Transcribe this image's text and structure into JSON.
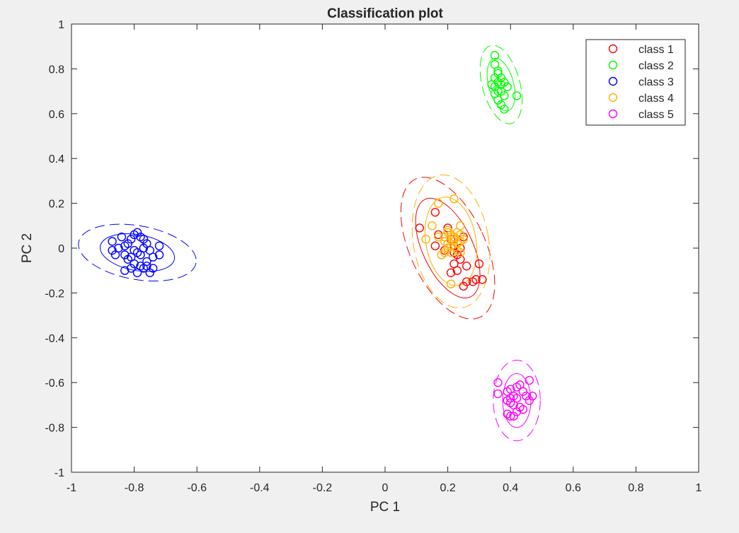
{
  "chart_data": {
    "type": "scatter",
    "title": "Classification plot",
    "xlabel": "PC 1",
    "ylabel": "PC 2",
    "xlim": [
      -1,
      1
    ],
    "ylim": [
      -1,
      1
    ],
    "x_ticks": [
      "-1",
      "-0.8",
      "-0.6",
      "-0.4",
      "-0.2",
      "0",
      "0.2",
      "0.4",
      "0.6",
      "0.8",
      "1"
    ],
    "y_ticks": [
      "1",
      "0.8",
      "0.6",
      "0.4",
      "0.2",
      "0",
      "-0.2",
      "-0.4",
      "-0.6",
      "-0.8",
      "-1"
    ],
    "grid": false,
    "legend_position": "top-right",
    "series": [
      {
        "name": "class 1",
        "color": "#ff0000",
        "marker": "circle",
        "points": [
          [
            0.11,
            0.09
          ],
          [
            0.16,
            0.16
          ],
          [
            0.17,
            0.06
          ],
          [
            0.16,
            0.01
          ],
          [
            0.19,
            -0.01
          ],
          [
            0.2,
            0.09
          ],
          [
            0.21,
            0.04
          ],
          [
            0.22,
            -0.02
          ],
          [
            0.23,
            -0.03
          ],
          [
            0.24,
            -0.05
          ],
          [
            0.25,
            0.05
          ],
          [
            0.26,
            -0.08
          ],
          [
            0.26,
            -0.15
          ],
          [
            0.25,
            -0.17
          ],
          [
            0.28,
            -0.15
          ],
          [
            0.29,
            -0.14
          ],
          [
            0.31,
            -0.14
          ],
          [
            0.3,
            -0.07
          ],
          [
            0.23,
            -0.1
          ],
          [
            0.21,
            -0.11
          ],
          [
            0.22,
            0.01
          ],
          [
            0.2,
            0.0
          ],
          [
            0.22,
            -0.07
          ],
          [
            0.24,
            0.0
          ]
        ],
        "ellipses": [
          {
            "center": [
              0.2,
              0.0
            ],
            "rx": 0.08,
            "ry": 0.24,
            "rotation_deg": -25,
            "style": "solid"
          },
          {
            "center": [
              0.2,
              0.0
            ],
            "rx": 0.12,
            "ry": 0.34,
            "rotation_deg": -25,
            "style": "dashed"
          }
        ]
      },
      {
        "name": "class 2",
        "color": "#00ff00",
        "marker": "circle",
        "points": [
          [
            0.35,
            0.86
          ],
          [
            0.35,
            0.82
          ],
          [
            0.36,
            0.79
          ],
          [
            0.35,
            0.76
          ],
          [
            0.36,
            0.74
          ],
          [
            0.37,
            0.73
          ],
          [
            0.38,
            0.74
          ],
          [
            0.35,
            0.72
          ],
          [
            0.36,
            0.7
          ],
          [
            0.34,
            0.73
          ],
          [
            0.37,
            0.7
          ],
          [
            0.38,
            0.68
          ],
          [
            0.36,
            0.66
          ],
          [
            0.37,
            0.64
          ],
          [
            0.38,
            0.62
          ],
          [
            0.42,
            0.68
          ],
          [
            0.35,
            0.69
          ],
          [
            0.37,
            0.76
          ],
          [
            0.39,
            0.72
          ],
          [
            0.36,
            0.78
          ]
        ],
        "ellipses": [
          {
            "center": [
              0.37,
              0.73
            ],
            "rx": 0.04,
            "ry": 0.12,
            "rotation_deg": -15,
            "style": "solid"
          },
          {
            "center": [
              0.37,
              0.73
            ],
            "rx": 0.06,
            "ry": 0.18,
            "rotation_deg": -15,
            "style": "dashed"
          }
        ]
      },
      {
        "name": "class 3",
        "color": "#0000ff",
        "marker": "circle",
        "points": [
          [
            -0.87,
            0.03
          ],
          [
            -0.87,
            -0.01
          ],
          [
            -0.86,
            -0.03
          ],
          [
            -0.85,
            0.0
          ],
          [
            -0.84,
            0.05
          ],
          [
            -0.83,
            0.01
          ],
          [
            -0.83,
            -0.03
          ],
          [
            -0.82,
            0.02
          ],
          [
            -0.81,
            0.04
          ],
          [
            -0.8,
            0.06
          ],
          [
            -0.79,
            0.07
          ],
          [
            -0.78,
            0.05
          ],
          [
            -0.8,
            -0.01
          ],
          [
            -0.81,
            -0.04
          ],
          [
            -0.79,
            -0.02
          ],
          [
            -0.78,
            -0.03
          ],
          [
            -0.77,
            0.0
          ],
          [
            -0.76,
            0.02
          ],
          [
            -0.75,
            -0.01
          ],
          [
            -0.74,
            -0.04
          ],
          [
            -0.72,
            -0.03
          ],
          [
            -0.72,
            0.01
          ],
          [
            -0.76,
            -0.06
          ],
          [
            -0.77,
            -0.09
          ],
          [
            -0.75,
            -0.11
          ],
          [
            -0.79,
            -0.11
          ],
          [
            -0.8,
            -0.07
          ],
          [
            -0.82,
            -0.05
          ],
          [
            -0.83,
            -0.1
          ],
          [
            -0.78,
            -0.08
          ],
          [
            -0.76,
            -0.08
          ],
          [
            -0.74,
            -0.09
          ],
          [
            -0.77,
            0.04
          ],
          [
            -0.81,
            -0.09
          ]
        ],
        "ellipses": [
          {
            "center": [
              -0.79,
              -0.02
            ],
            "rx": 0.12,
            "ry": 0.08,
            "rotation_deg": 10,
            "style": "solid"
          },
          {
            "center": [
              -0.79,
              -0.02
            ],
            "rx": 0.19,
            "ry": 0.12,
            "rotation_deg": 10,
            "style": "dashed"
          }
        ]
      },
      {
        "name": "class 4",
        "color": "#ffb000",
        "marker": "circle",
        "points": [
          [
            0.22,
            0.22
          ],
          [
            0.17,
            0.2
          ],
          [
            0.15,
            0.1
          ],
          [
            0.13,
            0.04
          ],
          [
            0.17,
            0.05
          ],
          [
            0.19,
            0.05
          ],
          [
            0.2,
            0.08
          ],
          [
            0.21,
            0.06
          ],
          [
            0.22,
            0.04
          ],
          [
            0.23,
            0.02
          ],
          [
            0.24,
            0.1
          ],
          [
            0.24,
            0.06
          ],
          [
            0.25,
            0.04
          ],
          [
            0.2,
            0.02
          ],
          [
            0.2,
            0.0
          ],
          [
            0.21,
            -0.02
          ],
          [
            0.18,
            -0.03
          ],
          [
            0.19,
            -0.02
          ],
          [
            0.23,
            -0.01
          ],
          [
            0.24,
            -0.02
          ],
          [
            0.21,
            0.01
          ],
          [
            0.22,
            0.05
          ],
          [
            0.2,
            0.07
          ],
          [
            0.23,
            0.07
          ],
          [
            0.21,
            -0.16
          ],
          [
            0.19,
            0.03
          ],
          [
            0.22,
            0.03
          ],
          [
            0.24,
            0.03
          ]
        ],
        "ellipses": [
          {
            "center": [
              0.21,
              0.03
            ],
            "rx": 0.08,
            "ry": 0.2,
            "rotation_deg": -10,
            "style": "solid"
          },
          {
            "center": [
              0.21,
              0.03
            ],
            "rx": 0.12,
            "ry": 0.3,
            "rotation_deg": -10,
            "style": "dashed"
          }
        ]
      },
      {
        "name": "class 5",
        "color": "#ff00ff",
        "marker": "circle",
        "points": [
          [
            0.36,
            -0.6
          ],
          [
            0.36,
            -0.65
          ],
          [
            0.39,
            -0.64
          ],
          [
            0.4,
            -0.67
          ],
          [
            0.41,
            -0.7
          ],
          [
            0.42,
            -0.62
          ],
          [
            0.43,
            -0.61
          ],
          [
            0.44,
            -0.64
          ],
          [
            0.45,
            -0.66
          ],
          [
            0.46,
            -0.59
          ],
          [
            0.46,
            -0.68
          ],
          [
            0.43,
            -0.71
          ],
          [
            0.42,
            -0.73
          ],
          [
            0.41,
            -0.75
          ],
          [
            0.4,
            -0.75
          ],
          [
            0.39,
            -0.74
          ],
          [
            0.41,
            -0.66
          ],
          [
            0.4,
            -0.69
          ],
          [
            0.44,
            -0.72
          ],
          [
            0.47,
            -0.66
          ],
          [
            0.42,
            -0.67
          ],
          [
            0.4,
            -0.63
          ],
          [
            0.39,
            -0.68
          ]
        ],
        "ellipses": [
          {
            "center": [
              0.42,
              -0.68
            ],
            "rx": 0.045,
            "ry": 0.12,
            "rotation_deg": 0,
            "style": "solid"
          },
          {
            "center": [
              0.42,
              -0.68
            ],
            "rx": 0.075,
            "ry": 0.18,
            "rotation_deg": 0,
            "style": "dashed"
          }
        ]
      }
    ]
  }
}
